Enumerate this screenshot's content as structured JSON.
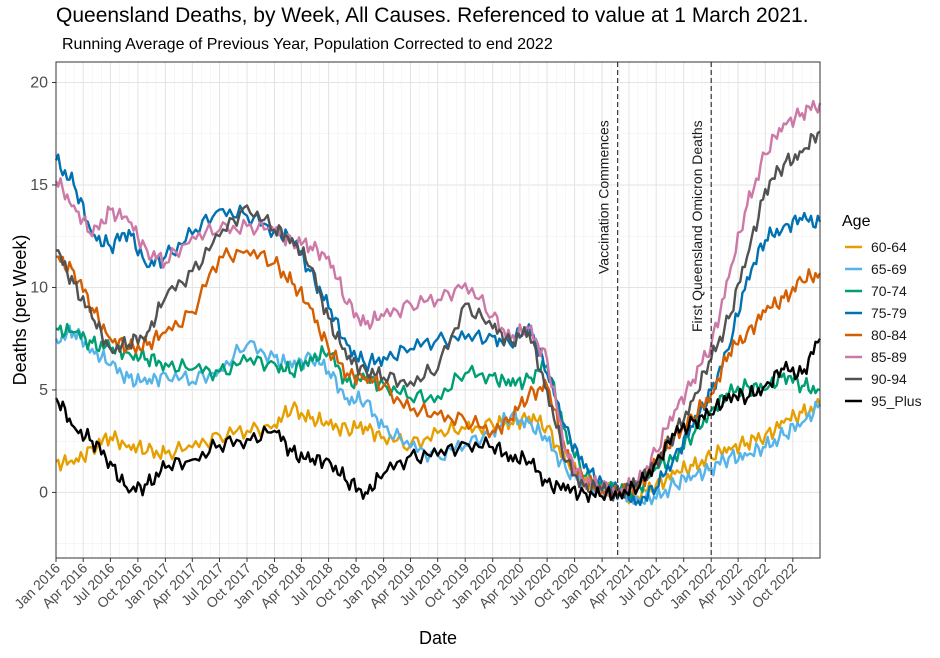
{
  "chart_data": {
    "type": "line",
    "title": "Queensland Deaths, by Week, All Causes. Referenced to value at 1 March 2021.",
    "subtitle": "Running Average of Previous Year, Population Corrected to end 2022",
    "xlabel": "Date",
    "ylabel": "Deaths (per Week)",
    "xlim": [
      "2016-01-01",
      "2022-12-31"
    ],
    "ylim": [
      -3.2,
      21
    ],
    "yticks": [
      0,
      5,
      10,
      15,
      20
    ],
    "xtick_labels": [
      "Jan 2016",
      "Apr 2016",
      "Jul 2016",
      "Oct 2016",
      "Jan 2017",
      "Apr 2017",
      "Jul 2017",
      "Oct 2017",
      "Jan 2018",
      "Apr 2018",
      "Jul 2018",
      "Oct 2018",
      "Jan 2019",
      "Apr 2019",
      "Jul 2019",
      "Oct 2019",
      "Jan 2020",
      "Apr 2020",
      "Jul 2020",
      "Oct 2020",
      "Jan 2021",
      "Apr 2021",
      "Jul 2021",
      "Oct 2021",
      "Jan 2022",
      "Apr 2022",
      "Jul 2022",
      "Oct 2022"
    ],
    "grid": true,
    "legend": {
      "title": "Age",
      "position": "right"
    },
    "annotations": [
      {
        "label": "Vaccination Commences",
        "x": "2021-02-22"
      },
      {
        "label": "First Queensland Omicron Deaths",
        "x": "2022-01-01"
      }
    ],
    "series": [
      {
        "name": "60-64",
        "color": "#E69F00",
        "x": [
          "2016-01-01",
          "2016-03-01",
          "2016-05-01",
          "2016-07-01",
          "2016-09-01",
          "2016-11-01",
          "2017-01-01",
          "2017-04-01",
          "2017-07-01",
          "2017-10-01",
          "2018-01-01",
          "2018-03-01",
          "2018-05-01",
          "2018-07-01",
          "2018-09-01",
          "2018-11-01",
          "2019-01-01",
          "2019-04-01",
          "2019-07-01",
          "2019-10-01",
          "2020-01-01",
          "2020-03-01",
          "2020-05-01",
          "2020-07-01",
          "2020-09-01",
          "2020-11-01",
          "2021-01-01",
          "2021-03-01",
          "2021-05-01",
          "2021-07-01",
          "2021-09-01",
          "2021-11-01",
          "2022-01-01",
          "2022-03-01",
          "2022-05-01",
          "2022-07-01",
          "2022-09-01",
          "2022-11-01",
          "2022-12-31"
        ],
        "y": [
          1.5,
          1.4,
          2.2,
          2.7,
          2.3,
          2.0,
          1.9,
          2.2,
          2.8,
          3.0,
          3.3,
          4.1,
          3.6,
          3.3,
          3.1,
          3.2,
          2.7,
          2.3,
          2.9,
          3.1,
          3.3,
          3.4,
          3.7,
          3.2,
          1.5,
          0.5,
          0.1,
          0.0,
          -0.2,
          0.4,
          0.9,
          1.3,
          1.7,
          2.2,
          2.4,
          2.8,
          3.4,
          3.9,
          4.2
        ]
      },
      {
        "name": "65-69",
        "color": "#56B4E9",
        "x": [
          "2016-01-01",
          "2016-03-01",
          "2016-05-01",
          "2016-07-01",
          "2016-09-01",
          "2016-11-01",
          "2017-01-01",
          "2017-04-01",
          "2017-07-01",
          "2017-10-01",
          "2018-01-01",
          "2018-03-01",
          "2018-05-01",
          "2018-07-01",
          "2018-09-01",
          "2018-11-01",
          "2019-01-01",
          "2019-04-01",
          "2019-07-01",
          "2019-10-01",
          "2020-01-01",
          "2020-03-01",
          "2020-05-01",
          "2020-07-01",
          "2020-09-01",
          "2020-11-01",
          "2021-01-01",
          "2021-03-01",
          "2021-05-01",
          "2021-07-01",
          "2021-09-01",
          "2021-11-01",
          "2022-01-01",
          "2022-03-01",
          "2022-05-01",
          "2022-07-01",
          "2022-09-01",
          "2022-11-01",
          "2022-12-31"
        ],
        "y": [
          7.5,
          7.8,
          7.0,
          6.2,
          5.6,
          5.3,
          5.8,
          5.4,
          6.0,
          7.2,
          6.6,
          6.1,
          6.7,
          5.9,
          4.6,
          4.4,
          3.2,
          2.2,
          1.8,
          2.3,
          3.0,
          3.7,
          3.4,
          2.5,
          1.2,
          0.4,
          0.2,
          0.0,
          -0.4,
          -0.3,
          0.4,
          0.8,
          1.2,
          1.7,
          1.8,
          2.2,
          2.8,
          3.4,
          4.3
        ]
      },
      {
        "name": "70-74",
        "color": "#009E73",
        "x": [
          "2016-01-01",
          "2016-03-01",
          "2016-05-01",
          "2016-07-01",
          "2016-09-01",
          "2016-11-01",
          "2017-01-01",
          "2017-04-01",
          "2017-07-01",
          "2017-10-01",
          "2018-01-01",
          "2018-03-01",
          "2018-05-01",
          "2018-07-01",
          "2018-09-01",
          "2018-11-01",
          "2019-01-01",
          "2019-04-01",
          "2019-07-01",
          "2019-10-01",
          "2020-01-01",
          "2020-03-01",
          "2020-05-01",
          "2020-07-01",
          "2020-09-01",
          "2020-11-01",
          "2021-01-01",
          "2021-03-01",
          "2021-05-01",
          "2021-07-01",
          "2021-09-01",
          "2021-11-01",
          "2022-01-01",
          "2022-03-01",
          "2022-05-01",
          "2022-07-01",
          "2022-09-01",
          "2022-11-01",
          "2022-12-31"
        ],
        "y": [
          8.0,
          7.8,
          7.3,
          7.0,
          6.8,
          6.5,
          6.3,
          6.0,
          5.9,
          6.4,
          6.3,
          5.8,
          6.6,
          6.8,
          5.4,
          5.5,
          5.3,
          4.6,
          4.7,
          5.8,
          5.7,
          5.2,
          5.6,
          6.2,
          3.0,
          0.8,
          0.4,
          0.0,
          0.2,
          1.2,
          1.8,
          2.8,
          4.0,
          4.8,
          5.2,
          5.0,
          5.8,
          5.2,
          5.0
        ]
      },
      {
        "name": "75-79",
        "color": "#0072B2",
        "x": [
          "2016-01-01",
          "2016-03-01",
          "2016-05-01",
          "2016-07-01",
          "2016-09-01",
          "2016-11-01",
          "2017-01-01",
          "2017-04-01",
          "2017-07-01",
          "2017-10-01",
          "2018-01-01",
          "2018-03-01",
          "2018-05-01",
          "2018-07-01",
          "2018-09-01",
          "2018-11-01",
          "2019-01-01",
          "2019-04-01",
          "2019-07-01",
          "2019-10-01",
          "2020-01-01",
          "2020-03-01",
          "2020-05-01",
          "2020-07-01",
          "2020-09-01",
          "2020-11-01",
          "2021-01-01",
          "2021-03-01",
          "2021-05-01",
          "2021-07-01",
          "2021-09-01",
          "2021-11-01",
          "2022-01-01",
          "2022-03-01",
          "2022-05-01",
          "2022-07-01",
          "2022-09-01",
          "2022-11-01",
          "2022-12-31"
        ],
        "y": [
          16.2,
          15.0,
          12.6,
          12.0,
          12.8,
          11.0,
          11.5,
          12.6,
          13.8,
          13.5,
          12.8,
          12.4,
          10.8,
          9.0,
          7.2,
          6.2,
          6.6,
          7.0,
          7.5,
          7.5,
          7.6,
          7.2,
          8.2,
          5.8,
          3.2,
          1.2,
          0.5,
          0.0,
          -0.4,
          0.2,
          1.8,
          3.2,
          5.0,
          7.0,
          10.5,
          12.3,
          13.0,
          13.3,
          13.2
        ]
      },
      {
        "name": "80-84",
        "color": "#D55E00",
        "x": [
          "2016-01-01",
          "2016-03-01",
          "2016-05-01",
          "2016-07-01",
          "2016-09-01",
          "2016-11-01",
          "2017-01-01",
          "2017-04-01",
          "2017-07-01",
          "2017-10-01",
          "2018-01-01",
          "2018-03-01",
          "2018-05-01",
          "2018-07-01",
          "2018-09-01",
          "2018-11-01",
          "2019-01-01",
          "2019-04-01",
          "2019-07-01",
          "2019-10-01",
          "2020-01-01",
          "2020-03-01",
          "2020-05-01",
          "2020-07-01",
          "2020-09-01",
          "2020-11-01",
          "2021-01-01",
          "2021-03-01",
          "2021-05-01",
          "2021-07-01",
          "2021-09-01",
          "2021-11-01",
          "2022-01-01",
          "2022-03-01",
          "2022-05-01",
          "2022-07-01",
          "2022-09-01",
          "2022-11-01",
          "2022-12-31"
        ],
        "y": [
          11.5,
          10.8,
          9.0,
          7.5,
          7.0,
          7.2,
          7.8,
          8.8,
          11.5,
          11.8,
          11.2,
          10.2,
          9.0,
          7.0,
          5.8,
          5.6,
          5.2,
          4.0,
          3.8,
          3.5,
          3.0,
          3.6,
          4.8,
          5.2,
          2.0,
          0.5,
          0.1,
          0.0,
          0.3,
          1.5,
          2.8,
          3.6,
          4.8,
          6.8,
          7.8,
          8.8,
          9.5,
          10.3,
          10.7
        ]
      },
      {
        "name": "85-89",
        "color": "#CC79A7",
        "x": [
          "2016-01-01",
          "2016-03-01",
          "2016-05-01",
          "2016-07-01",
          "2016-09-01",
          "2016-11-01",
          "2017-01-01",
          "2017-04-01",
          "2017-07-01",
          "2017-10-01",
          "2018-01-01",
          "2018-03-01",
          "2018-05-01",
          "2018-07-01",
          "2018-09-01",
          "2018-11-01",
          "2019-01-01",
          "2019-04-01",
          "2019-07-01",
          "2019-10-01",
          "2020-01-01",
          "2020-03-01",
          "2020-05-01",
          "2020-07-01",
          "2020-09-01",
          "2020-11-01",
          "2021-01-01",
          "2021-03-01",
          "2021-05-01",
          "2021-07-01",
          "2021-09-01",
          "2021-11-01",
          "2022-01-01",
          "2022-03-01",
          "2022-05-01",
          "2022-07-01",
          "2022-09-01",
          "2022-11-01",
          "2022-12-31"
        ],
        "y": [
          15.2,
          14.0,
          12.5,
          13.8,
          13.2,
          11.8,
          11.2,
          12.5,
          12.8,
          13.0,
          12.8,
          12.3,
          12.0,
          11.5,
          9.2,
          8.2,
          8.6,
          9.2,
          9.4,
          10.2,
          8.6,
          7.5,
          8.0,
          6.5,
          2.0,
          0.6,
          0.3,
          0.0,
          0.5,
          2.0,
          4.0,
          5.5,
          7.2,
          10.5,
          14.0,
          16.5,
          18.0,
          18.5,
          19.0
        ]
      },
      {
        "name": "90-94",
        "color": "#525252",
        "x": [
          "2016-01-01",
          "2016-03-01",
          "2016-05-01",
          "2016-07-01",
          "2016-09-01",
          "2016-11-01",
          "2017-01-01",
          "2017-04-01",
          "2017-07-01",
          "2017-10-01",
          "2018-01-01",
          "2018-03-01",
          "2018-05-01",
          "2018-07-01",
          "2018-09-01",
          "2018-11-01",
          "2019-01-01",
          "2019-04-01",
          "2019-07-01",
          "2019-10-01",
          "2020-01-01",
          "2020-03-01",
          "2020-05-01",
          "2020-07-01",
          "2020-09-01",
          "2020-11-01",
          "2021-01-01",
          "2021-03-01",
          "2021-05-01",
          "2021-07-01",
          "2021-09-01",
          "2021-11-01",
          "2022-01-01",
          "2022-03-01",
          "2022-05-01",
          "2022-07-01",
          "2022-09-01",
          "2022-11-01",
          "2022-12-31"
        ],
        "y": [
          11.8,
          10.2,
          8.5,
          7.0,
          7.2,
          7.8,
          9.5,
          10.8,
          12.5,
          14.0,
          12.8,
          12.4,
          11.0,
          8.5,
          6.5,
          6.0,
          5.6,
          5.4,
          6.0,
          9.2,
          8.0,
          7.4,
          7.8,
          5.0,
          1.5,
          0.3,
          0.1,
          0.0,
          0.5,
          1.5,
          2.8,
          4.5,
          6.5,
          8.5,
          11.5,
          14.8,
          16.0,
          16.6,
          17.6
        ]
      },
      {
        "name": "95_Plus",
        "color": "#000000",
        "x": [
          "2016-01-01",
          "2016-03-01",
          "2016-05-01",
          "2016-07-01",
          "2016-09-01",
          "2016-11-01",
          "2017-01-01",
          "2017-04-01",
          "2017-07-01",
          "2017-10-01",
          "2018-01-01",
          "2018-03-01",
          "2018-05-01",
          "2018-07-01",
          "2018-09-01",
          "2018-11-01",
          "2019-01-01",
          "2019-04-01",
          "2019-07-01",
          "2019-10-01",
          "2020-01-01",
          "2020-03-01",
          "2020-05-01",
          "2020-07-01",
          "2020-09-01",
          "2020-11-01",
          "2021-01-01",
          "2021-03-01",
          "2021-05-01",
          "2021-07-01",
          "2021-09-01",
          "2021-11-01",
          "2022-01-01",
          "2022-03-01",
          "2022-05-01",
          "2022-07-01",
          "2022-09-01",
          "2022-11-01",
          "2022-12-31"
        ],
        "y": [
          4.6,
          3.2,
          2.5,
          1.5,
          0.0,
          0.4,
          1.2,
          1.6,
          2.3,
          2.6,
          3.0,
          2.0,
          1.5,
          1.6,
          0.5,
          0.0,
          0.9,
          1.8,
          1.8,
          2.4,
          2.2,
          1.8,
          1.5,
          0.5,
          0.1,
          0.0,
          -0.2,
          0.0,
          0.2,
          1.5,
          2.8,
          3.5,
          3.8,
          4.8,
          4.6,
          5.2,
          6.0,
          5.8,
          7.5
        ]
      }
    ]
  }
}
